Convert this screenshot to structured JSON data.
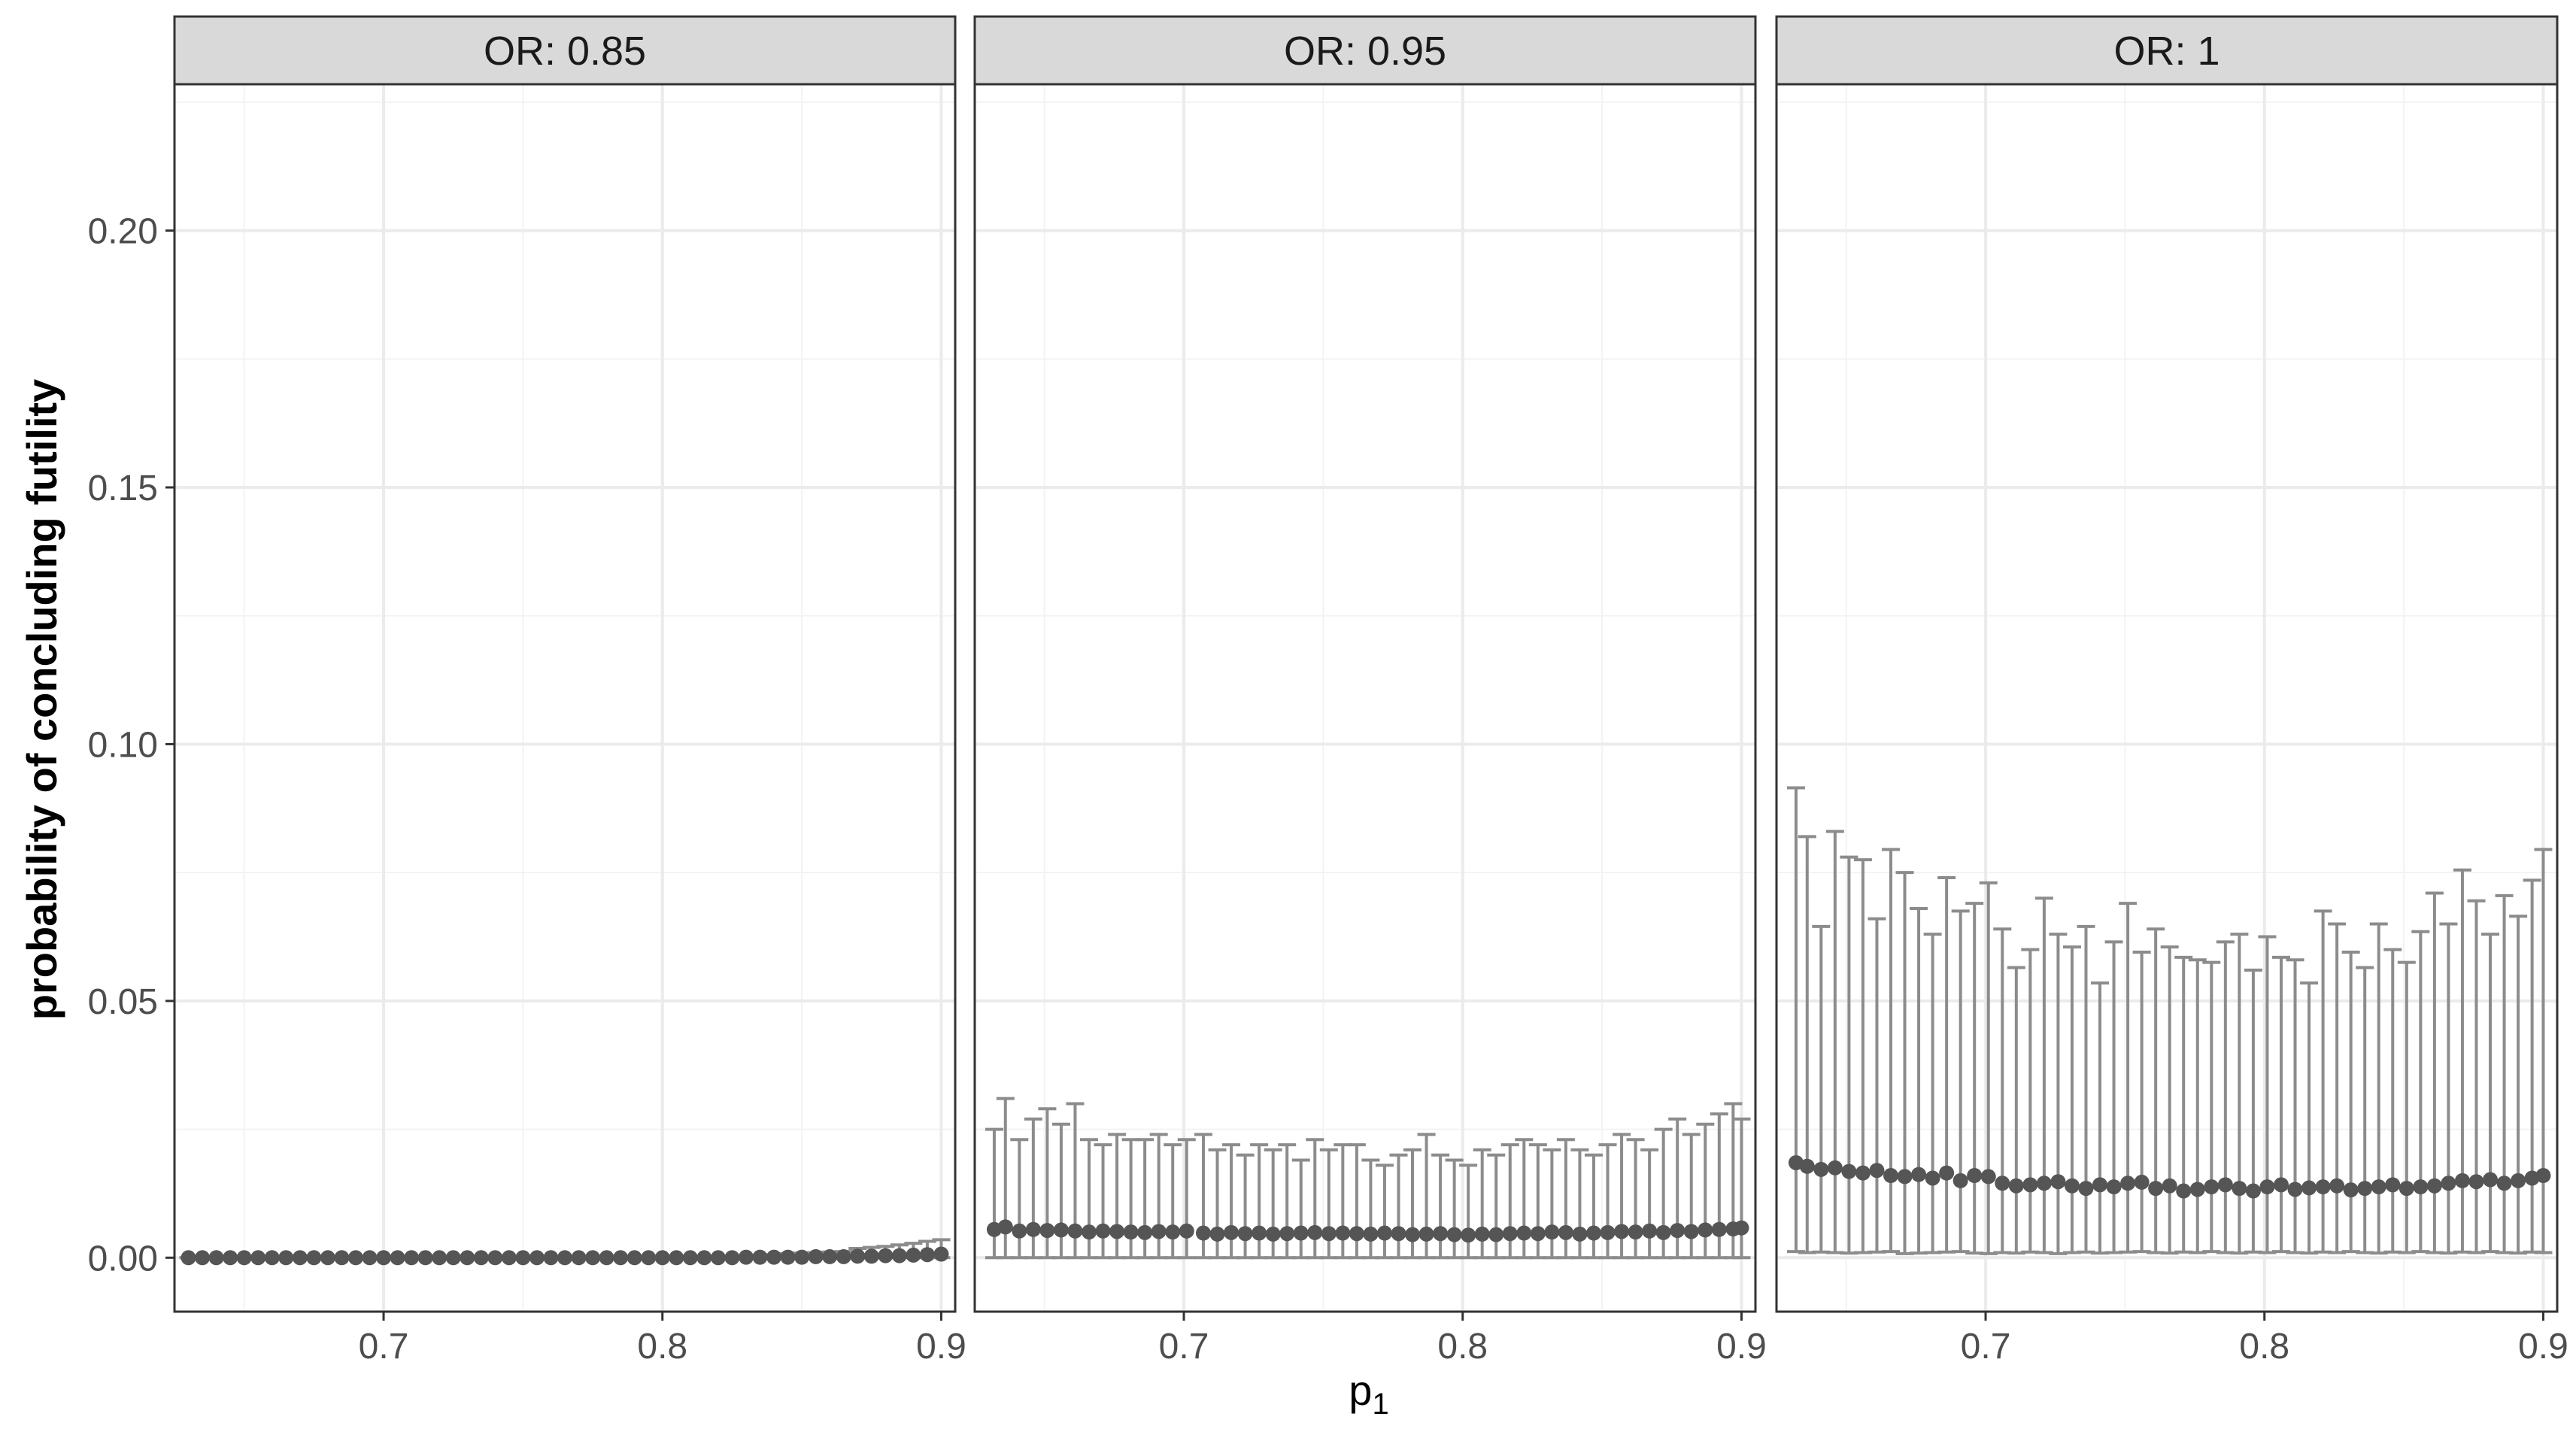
{
  "chart_data": {
    "type": "scatter",
    "xlabel": "p",
    "xlabel_sub": "1",
    "ylabel": "probability of concluding futility",
    "xlim": [
      0.625,
      0.905
    ],
    "ylim": [
      -0.0105,
      0.2285
    ],
    "x_ticks": [
      0.7,
      0.8,
      0.9
    ],
    "x_tick_labels": [
      "0.7",
      "0.8",
      "0.9"
    ],
    "y_ticks": [
      0.0,
      0.05,
      0.1,
      0.15,
      0.2
    ],
    "y_tick_labels": [
      "0.00",
      "0.05",
      "0.10",
      "0.15",
      "0.20"
    ],
    "grid": true,
    "colors": {
      "point": "#555555",
      "errorbar": "#8c8c8c",
      "strip_fill": "#d9d9d9",
      "strip_border": "#333333",
      "panel_border": "#333333",
      "grid_major": "#ebebeb",
      "grid_minor": "#f3f3f3"
    },
    "panels": [
      {
        "title": "OR: 0.85",
        "x": [
          0.63,
          0.635,
          0.64,
          0.645,
          0.65,
          0.655,
          0.66,
          0.665,
          0.67,
          0.675,
          0.68,
          0.685,
          0.69,
          0.695,
          0.7,
          0.705,
          0.71,
          0.715,
          0.72,
          0.725,
          0.73,
          0.735,
          0.74,
          0.745,
          0.75,
          0.755,
          0.76,
          0.765,
          0.77,
          0.775,
          0.78,
          0.785,
          0.79,
          0.795,
          0.8,
          0.805,
          0.81,
          0.815,
          0.82,
          0.825,
          0.83,
          0.835,
          0.84,
          0.845,
          0.85,
          0.855,
          0.86,
          0.865,
          0.87,
          0.875,
          0.88,
          0.885,
          0.89,
          0.895,
          0.9
        ],
        "y": [
          0.0,
          0.0,
          0.0,
          0.0,
          0.0,
          0.0,
          0.0,
          0.0,
          0.0,
          0.0,
          0.0,
          0.0,
          0.0,
          0.0,
          0.0,
          0.0,
          0.0,
          0.0,
          0.0,
          0.0,
          0.0,
          0.0,
          0.0,
          0.0,
          0.0,
          0.0,
          0.0,
          0.0,
          0.0,
          0.0,
          0.0,
          0.0,
          0.0,
          0.0,
          0.0,
          0.0,
          0.0,
          0.0,
          0.0,
          0.0,
          0.0001,
          0.0001,
          0.0001,
          0.0001,
          0.0001,
          0.0002,
          0.0002,
          0.0002,
          0.0003,
          0.0003,
          0.0004,
          0.0004,
          0.0005,
          0.0006,
          0.0007
        ],
        "lower": [
          0.0,
          0.0,
          0.0,
          0.0,
          0.0,
          0.0,
          0.0,
          0.0,
          0.0,
          0.0,
          0.0,
          0.0,
          0.0,
          0.0,
          0.0,
          0.0,
          0.0,
          0.0,
          0.0,
          0.0,
          0.0,
          0.0,
          0.0,
          0.0,
          0.0,
          0.0,
          0.0,
          0.0,
          0.0,
          0.0,
          0.0,
          0.0,
          0.0,
          0.0,
          0.0,
          0.0,
          0.0,
          0.0,
          0.0,
          0.0,
          0.0,
          0.0,
          0.0,
          0.0,
          0.0,
          0.0,
          0.0,
          0.0,
          0.0,
          0.0,
          0.0,
          0.0,
          0.0,
          0.0,
          0.0
        ],
        "upper": [
          0.0,
          0.0,
          0.0,
          0.0,
          0.0,
          0.0,
          0.0,
          0.0,
          0.0,
          0.0,
          0.0,
          0.0,
          0.0,
          0.0,
          0.0,
          0.0,
          0.0,
          0.0,
          0.0,
          0.0,
          0.0,
          0.0,
          0.0,
          0.0,
          0.0,
          0.0,
          0.0,
          0.0,
          0.0,
          0.0,
          0.0,
          0.0,
          0.0,
          0.0,
          0.0,
          0.0,
          0.0,
          0.0,
          0.0,
          0.0,
          0.0004,
          0.0005,
          0.0006,
          0.0008,
          0.0009,
          0.001,
          0.0011,
          0.0012,
          0.0018,
          0.002,
          0.0022,
          0.0025,
          0.0028,
          0.0032,
          0.0035
        ]
      },
      {
        "title": "OR: 0.95",
        "x": [
          0.632,
          0.636,
          0.641,
          0.646,
          0.651,
          0.656,
          0.661,
          0.666,
          0.671,
          0.676,
          0.681,
          0.686,
          0.691,
          0.696,
          0.701,
          0.707,
          0.712,
          0.717,
          0.722,
          0.727,
          0.732,
          0.737,
          0.742,
          0.747,
          0.752,
          0.757,
          0.762,
          0.767,
          0.772,
          0.777,
          0.782,
          0.787,
          0.792,
          0.797,
          0.802,
          0.807,
          0.812,
          0.817,
          0.822,
          0.827,
          0.832,
          0.837,
          0.842,
          0.847,
          0.852,
          0.857,
          0.862,
          0.867,
          0.872,
          0.877,
          0.882,
          0.887,
          0.892,
          0.897,
          0.9
        ],
        "y": [
          0.0055,
          0.006,
          0.0052,
          0.0055,
          0.0053,
          0.0054,
          0.0052,
          0.005,
          0.0052,
          0.0051,
          0.005,
          0.0049,
          0.0051,
          0.005,
          0.0052,
          0.0048,
          0.0046,
          0.0049,
          0.0047,
          0.0048,
          0.0046,
          0.0047,
          0.0048,
          0.0049,
          0.0047,
          0.0048,
          0.0047,
          0.0046,
          0.0048,
          0.0047,
          0.0045,
          0.0046,
          0.0047,
          0.0045,
          0.0044,
          0.0046,
          0.0045,
          0.0047,
          0.0048,
          0.0047,
          0.005,
          0.0049,
          0.0046,
          0.0048,
          0.0049,
          0.0051,
          0.005,
          0.0052,
          0.0049,
          0.0053,
          0.0051,
          0.0054,
          0.0055,
          0.0056,
          0.0058
        ],
        "lower": [
          0.0,
          0.0,
          0.0,
          0.0,
          0.0,
          0.0,
          0.0,
          0.0,
          0.0,
          0.0,
          0.0,
          0.0,
          0.0,
          0.0,
          0.0,
          0.0,
          0.0,
          0.0,
          0.0,
          0.0,
          0.0,
          0.0,
          0.0,
          0.0,
          0.0,
          0.0,
          0.0,
          0.0,
          0.0,
          0.0,
          0.0,
          0.0,
          0.0,
          0.0,
          0.0,
          0.0,
          0.0,
          0.0,
          0.0,
          0.0,
          0.0,
          0.0,
          0.0,
          0.0,
          0.0,
          0.0,
          0.0,
          0.0,
          0.0,
          0.0,
          0.0,
          0.0,
          0.0,
          0.0,
          0.0
        ],
        "upper": [
          0.025,
          0.031,
          0.023,
          0.027,
          0.029,
          0.026,
          0.03,
          0.023,
          0.022,
          0.024,
          0.023,
          0.023,
          0.024,
          0.022,
          0.023,
          0.024,
          0.021,
          0.022,
          0.02,
          0.022,
          0.021,
          0.022,
          0.019,
          0.023,
          0.021,
          0.022,
          0.022,
          0.019,
          0.018,
          0.02,
          0.021,
          0.024,
          0.02,
          0.019,
          0.018,
          0.021,
          0.02,
          0.022,
          0.023,
          0.022,
          0.021,
          0.023,
          0.021,
          0.02,
          0.022,
          0.024,
          0.023,
          0.021,
          0.025,
          0.027,
          0.024,
          0.026,
          0.028,
          0.03,
          0.027
        ]
      },
      {
        "title": "OR: 1",
        "x": [
          0.632,
          0.636,
          0.641,
          0.646,
          0.651,
          0.656,
          0.661,
          0.666,
          0.671,
          0.676,
          0.681,
          0.686,
          0.691,
          0.696,
          0.701,
          0.706,
          0.711,
          0.716,
          0.721,
          0.726,
          0.731,
          0.736,
          0.741,
          0.746,
          0.751,
          0.756,
          0.761,
          0.766,
          0.771,
          0.776,
          0.781,
          0.786,
          0.791,
          0.796,
          0.801,
          0.806,
          0.811,
          0.816,
          0.821,
          0.826,
          0.831,
          0.836,
          0.841,
          0.846,
          0.851,
          0.856,
          0.861,
          0.866,
          0.871,
          0.876,
          0.881,
          0.886,
          0.891,
          0.896,
          0.9
        ],
        "y": [
          0.0185,
          0.0178,
          0.0172,
          0.0175,
          0.0168,
          0.0165,
          0.017,
          0.016,
          0.0158,
          0.0162,
          0.0155,
          0.0165,
          0.015,
          0.016,
          0.0158,
          0.0145,
          0.014,
          0.0142,
          0.0145,
          0.0148,
          0.014,
          0.0135,
          0.0142,
          0.0138,
          0.0145,
          0.0147,
          0.0135,
          0.014,
          0.013,
          0.0133,
          0.0138,
          0.0142,
          0.0135,
          0.013,
          0.0138,
          0.0142,
          0.0133,
          0.0136,
          0.0138,
          0.014,
          0.0132,
          0.0135,
          0.0138,
          0.0142,
          0.0135,
          0.0138,
          0.014,
          0.0145,
          0.015,
          0.0148,
          0.0152,
          0.0145,
          0.015,
          0.0155,
          0.016
        ],
        "lower": [
          0.0012,
          0.001,
          0.0011,
          0.001,
          0.0009,
          0.001,
          0.0011,
          0.0012,
          0.0008,
          0.0009,
          0.001,
          0.0011,
          0.0012,
          0.0009,
          0.0008,
          0.001,
          0.0009,
          0.0011,
          0.001,
          0.0008,
          0.001,
          0.0011,
          0.0009,
          0.001,
          0.0011,
          0.0012,
          0.001,
          0.0009,
          0.0011,
          0.001,
          0.0012,
          0.001,
          0.0009,
          0.0011,
          0.001,
          0.0012,
          0.001,
          0.0009,
          0.0011,
          0.001,
          0.0012,
          0.001,
          0.0009,
          0.0011,
          0.001,
          0.0012,
          0.001,
          0.0009,
          0.0011,
          0.001,
          0.0012,
          0.001,
          0.0009,
          0.0011,
          0.001
        ],
        "upper": [
          0.0915,
          0.082,
          0.0645,
          0.083,
          0.078,
          0.0775,
          0.066,
          0.0795,
          0.075,
          0.068,
          0.063,
          0.074,
          0.0675,
          0.069,
          0.073,
          0.064,
          0.0565,
          0.06,
          0.07,
          0.063,
          0.0605,
          0.0645,
          0.0535,
          0.0615,
          0.069,
          0.0595,
          0.064,
          0.0605,
          0.0585,
          0.058,
          0.0575,
          0.0615,
          0.063,
          0.056,
          0.0625,
          0.0585,
          0.058,
          0.0535,
          0.0675,
          0.065,
          0.0595,
          0.0565,
          0.065,
          0.06,
          0.0575,
          0.0635,
          0.071,
          0.065,
          0.0755,
          0.0695,
          0.063,
          0.0705,
          0.0665,
          0.0735,
          0.0795
        ]
      }
    ]
  }
}
